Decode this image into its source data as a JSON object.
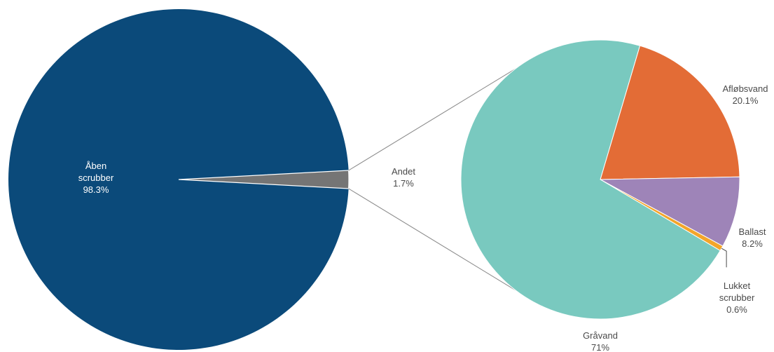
{
  "chart_data": {
    "type": "pie",
    "title": "",
    "main_pie": {
      "slices": [
        {
          "label_lines": [
            "Åben",
            "scrubber"
          ],
          "value_text": "98.3%",
          "value": 98.3,
          "color": "#0b4a7a"
        },
        {
          "label_lines": [
            "Andet"
          ],
          "value_text": "1.7%",
          "value": 1.7,
          "color": "#757575"
        }
      ]
    },
    "sub_pie": {
      "breaks_down": "Andet",
      "slices": [
        {
          "label_lines": [
            "Gråvand"
          ],
          "value_text": "71%",
          "value": 71.0,
          "color": "#79c9bf"
        },
        {
          "label_lines": [
            "Afløbsvand"
          ],
          "value_text": "20.1%",
          "value": 20.1,
          "color": "#e36c36"
        },
        {
          "label_lines": [
            "Ballast"
          ],
          "value_text": "8.2%",
          "value": 8.2,
          "color": "#9e84b8"
        },
        {
          "label_lines": [
            "Lukket",
            "scrubber"
          ],
          "value_text": "0.6%",
          "value": 0.6,
          "color": "#f3a52a"
        }
      ]
    },
    "legend": "none",
    "connector_color": "#8a8a8a"
  }
}
